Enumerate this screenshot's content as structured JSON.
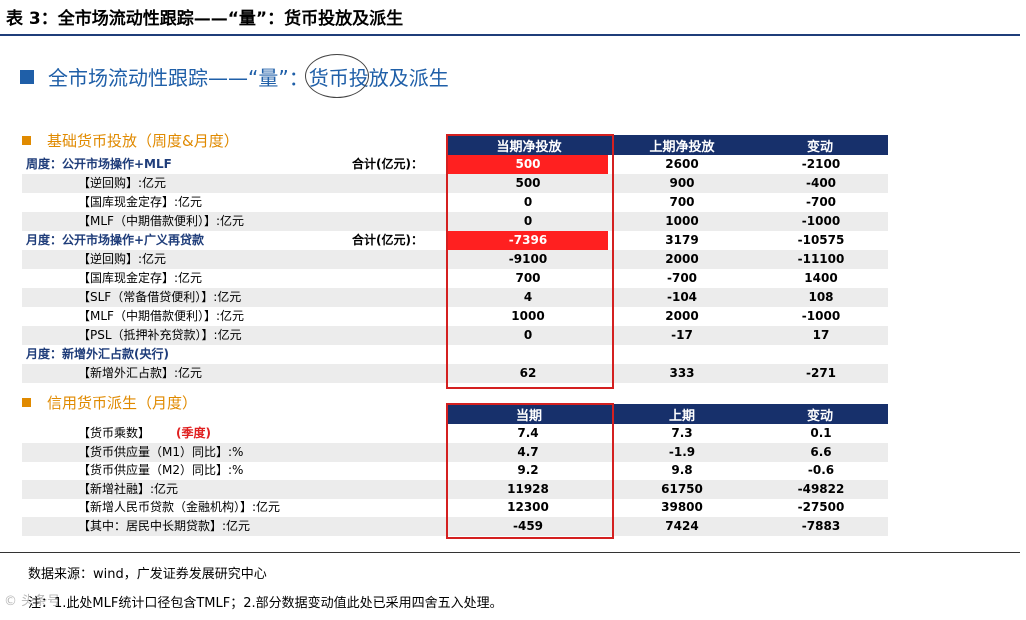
{
  "table_title": "表 3：全市场流动性跟踪——“量”：货币投放及派生",
  "slide_title": "全市场流动性跟踪——“量”：货币投放及派生",
  "section1": {
    "title": "基础货币投放（周度&月度）",
    "headers": [
      "当期净投放",
      "上期净投放",
      "变动"
    ],
    "rows": [
      {
        "label": "周度：公开市场操作+MLF",
        "style": "group",
        "sum_label": "合计(亿元)：",
        "cur": "500",
        "prev": "2600",
        "chg": "-2100",
        "highlight": true
      },
      {
        "label": "【逆回购】:亿元",
        "cur": "500",
        "prev": "900",
        "chg": "-400"
      },
      {
        "label": "【国库现金定存】:亿元",
        "cur": "0",
        "prev": "700",
        "chg": "-700"
      },
      {
        "label": "【MLF（中期借款便利）】:亿元",
        "cur": "0",
        "prev": "1000",
        "chg": "-1000"
      },
      {
        "label": "月度：公开市场操作+广义再贷款",
        "style": "group",
        "sum_label": "合计(亿元)：",
        "cur": "-7396",
        "prev": "3179",
        "chg": "-10575",
        "highlight": true
      },
      {
        "label": "【逆回购】:亿元",
        "cur": "-9100",
        "prev": "2000",
        "chg": "-11100"
      },
      {
        "label": "【国库现金定存】:亿元",
        "cur": "700",
        "prev": "-700",
        "chg": "1400"
      },
      {
        "label": "【SLF（常备借贷便利）】:亿元",
        "cur": "4",
        "prev": "-104",
        "chg": "108"
      },
      {
        "label": "【MLF（中期借款便利）】:亿元",
        "cur": "1000",
        "prev": "2000",
        "chg": "-1000"
      },
      {
        "label": "【PSL（抵押补充贷款）】:亿元",
        "cur": "0",
        "prev": "-17",
        "chg": "17"
      },
      {
        "label": "月度：新增外汇占款(央行)",
        "style": "group",
        "cur": "",
        "prev": "",
        "chg": ""
      },
      {
        "label": "【新增外汇占款】:亿元",
        "cur": "62",
        "prev": "333",
        "chg": "-271"
      }
    ]
  },
  "section2": {
    "title": "信用货币派生（月度）",
    "headers": [
      "当期",
      "上期",
      "变动"
    ],
    "rows": [
      {
        "label": "【货币乘数】",
        "label_extra": "(季度)",
        "cur": "7.4",
        "prev": "7.3",
        "chg": "0.1"
      },
      {
        "label": "【货币供应量（M1）同比】:%",
        "cur": "4.7",
        "prev": "-1.9",
        "chg": "6.6"
      },
      {
        "label": "【货币供应量（M2）同比】:%",
        "cur": "9.2",
        "prev": "9.8",
        "chg": "-0.6"
      },
      {
        "label": "【新增社融】:亿元",
        "cur": "11928",
        "prev": "61750",
        "chg": "-49822"
      },
      {
        "label": "【新增人民币贷款（金融机构）】:亿元",
        "cur": "12300",
        "prev": "39800",
        "chg": "-27500"
      },
      {
        "label": "【其中：居民中长期贷款】:亿元",
        "cur": "-459",
        "prev": "7424",
        "chg": "-7883"
      }
    ]
  },
  "source": "数据来源：wind，广发证券发展研究中心",
  "note": "注：1.此处MLF统计口径包含TMLF；2.部分数据变动值此处已采用四舍五入处理。",
  "watermark": "© 头条号"
}
